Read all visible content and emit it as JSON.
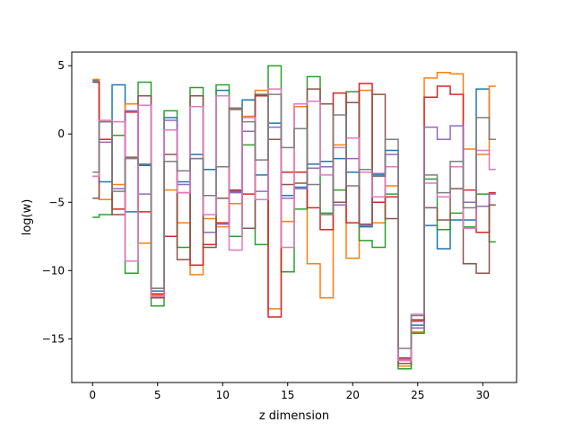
{
  "chart_data": {
    "type": "line",
    "drawstyle": "steps-mid",
    "title": "",
    "xlabel": "z dimension",
    "ylabel": "log(w)",
    "xlim": [
      -1.6,
      32.6
    ],
    "ylim": [
      -18.2,
      6.0
    ],
    "xticks": [
      0,
      5,
      10,
      15,
      20,
      25,
      30
    ],
    "yticks": [
      -15,
      -10,
      -5,
      0,
      5
    ],
    "grid": false,
    "legend": "none",
    "x": [
      0,
      1,
      2,
      3,
      4,
      5,
      6,
      7,
      8,
      9,
      10,
      11,
      12,
      13,
      14,
      15,
      16,
      17,
      18,
      19,
      20,
      21,
      22,
      23,
      24,
      25,
      26,
      27,
      28,
      29,
      30,
      31
    ],
    "series": [
      {
        "color": "#1f77b4",
        "values": [
          3.9,
          -3.5,
          3.6,
          -5.7,
          -2.3,
          -11.5,
          1.2,
          -3.5,
          -1.5,
          -2.6,
          3.2,
          -4.2,
          2.5,
          -3.0,
          0.8,
          -4.5,
          -3.9,
          -2.2,
          -2.0,
          -1.8,
          -2.8,
          -6.8,
          -3.0,
          -1.2,
          -17.0,
          -14.0,
          -6.7,
          -8.4,
          -6.3,
          -6.3,
          3.3,
          -0.4
        ]
      },
      {
        "color": "#ff7f0e",
        "values": [
          4.0,
          -4.8,
          -3.7,
          2.2,
          -8.0,
          -11.8,
          -4.1,
          -6.5,
          -10.3,
          -6.2,
          -6.8,
          -5.1,
          1.3,
          3.2,
          -12.8,
          -6.4,
          2.0,
          -9.5,
          -12.0,
          -0.8,
          -9.1,
          3.2,
          -6.5,
          -3.8,
          -17.0,
          -14.5,
          4.1,
          4.5,
          4.4,
          -1.1,
          -1.5,
          3.5
        ]
      },
      {
        "color": "#2ca02c",
        "values": [
          -6.1,
          -5.9,
          -0.1,
          -10.2,
          3.8,
          -12.6,
          1.7,
          -8.3,
          3.4,
          -7.2,
          3.6,
          -7.5,
          -0.8,
          -8.1,
          5.0,
          -10.1,
          -5.5,
          4.2,
          -5.8,
          -4.1,
          3.1,
          -7.8,
          -8.3,
          -4.4,
          -17.2,
          -14.6,
          -3.3,
          -7.0,
          -5.8,
          -6.8,
          -4.4,
          -7.9
        ]
      },
      {
        "color": "#d62728",
        "values": [
          3.8,
          -0.4,
          -5.5,
          1.6,
          -5.7,
          -11.7,
          -7.5,
          -4.3,
          -9.6,
          -8.1,
          -6.5,
          -4.1,
          -4.4,
          2.8,
          -13.4,
          -2.8,
          -2.8,
          -5.4,
          -7.0,
          3.0,
          -6.5,
          3.7,
          -5.0,
          -4.6,
          -16.4,
          -13.7,
          2.7,
          3.5,
          2.9,
          -4.1,
          -7.2,
          -4.3
        ]
      },
      {
        "color": "#9467bd",
        "values": [
          -3.1,
          -0.6,
          -4.0,
          1.7,
          -4.4,
          -11.3,
          1.0,
          -3.7,
          -1.8,
          -7.2,
          -6.6,
          -4.3,
          0.2,
          -4.2,
          0.5,
          -4.7,
          -4.0,
          -2.5,
          -2.4,
          -5.2,
          -1.8,
          -6.7,
          -2.9,
          -1.5,
          -16.5,
          -14.2,
          0.5,
          -0.4,
          0.6,
          -5.0,
          -5.3,
          -4.4
        ]
      },
      {
        "color": "#8c564b",
        "values": [
          -4.7,
          0.9,
          -5.9,
          -1.7,
          2.8,
          -12.0,
          -1.5,
          -9.2,
          2.8,
          -8.3,
          -4.7,
          1.8,
          -6.9,
          2.9,
          -0.4,
          -3.7,
          -3.6,
          3.3,
          2.2,
          -5.0,
          2.3,
          -6.6,
          2.9,
          -6.2,
          -16.8,
          -13.6,
          -5.4,
          -6.3,
          -4.0,
          -9.5,
          -10.2,
          -5.2
        ]
      },
      {
        "color": "#e377c2",
        "values": [
          -3.1,
          1.0,
          0.9,
          -9.3,
          2.1,
          -11.9,
          0.3,
          -4.3,
          2.0,
          -5.9,
          2.8,
          -8.5,
          1.2,
          -4.8,
          3.3,
          -8.3,
          2.2,
          2.4,
          -3.0,
          -1.0,
          -0.3,
          -2.8,
          -4.6,
          -2.4,
          -16.6,
          -13.2,
          -3.6,
          -4.6,
          -2.4,
          -6.9,
          -1.2,
          -2.6
        ]
      },
      {
        "color": "#7f7f7f",
        "values": [
          -2.8,
          0.9,
          -4.2,
          -1.8,
          -2.2,
          -11.3,
          -2.0,
          -2.7,
          -1.8,
          -4.5,
          -2.4,
          1.9,
          0.9,
          -1.9,
          2.9,
          -1.0,
          0.4,
          -3.7,
          -5.9,
          1.4,
          -3.8,
          -2.6,
          -3.1,
          -0.4,
          -15.7,
          -13.3,
          -3.0,
          -4.3,
          -2.0,
          -5.4,
          1.2,
          -0.4
        ]
      }
    ]
  }
}
